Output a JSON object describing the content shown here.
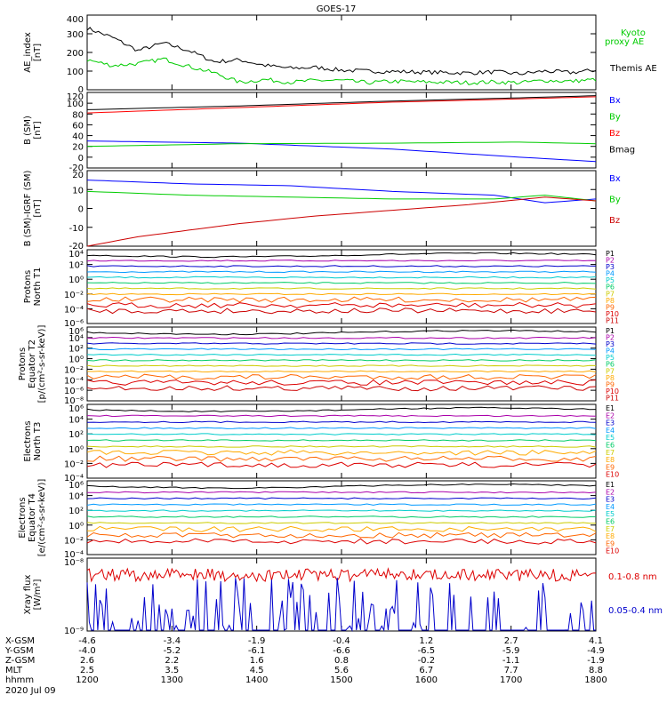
{
  "title": "GOES-17",
  "chart_data": [
    {
      "type": "line",
      "panel": "ae",
      "ylabel": [
        "AE_index",
        "[nT]"
      ],
      "ylim": [
        0,
        400
      ],
      "yticks": [
        "0",
        "100",
        "200",
        "300",
        "400"
      ],
      "series": [
        {
          "name": "Themis AE",
          "color": "#000000",
          "x": [
            0,
            0.05,
            0.1,
            0.15,
            0.2,
            0.25,
            0.3,
            0.35,
            0.4,
            0.45,
            0.5,
            0.55,
            0.6,
            0.65,
            0.7,
            0.75,
            0.8,
            0.85,
            0.9,
            0.95,
            1
          ],
          "y": [
            330,
            280,
            210,
            250,
            210,
            150,
            160,
            130,
            115,
            120,
            105,
            100,
            98,
            95,
            92,
            90,
            96,
            85,
            100,
            92,
            105
          ]
        },
        {
          "name": "Kyoto proxy AE",
          "color": "#00cc00",
          "x": [
            0,
            0.05,
            0.1,
            0.15,
            0.2,
            0.25,
            0.3,
            0.35,
            0.4,
            0.45,
            0.5,
            0.55,
            0.6,
            0.65,
            0.7,
            0.75,
            0.8,
            0.85,
            0.9,
            0.95,
            1
          ],
          "y": [
            160,
            130,
            140,
            165,
            125,
            90,
            40,
            55,
            40,
            50,
            50,
            38,
            45,
            42,
            40,
            38,
            42,
            38,
            50,
            45,
            55
          ]
        }
      ],
      "legend": [
        "Kyoto",
        "proxy AE",
        "Themis AE"
      ]
    },
    {
      "type": "line",
      "panel": "b_sm",
      "ylabel": [
        "B (SM)",
        "[nT]"
      ],
      "ylim": [
        -20,
        120
      ],
      "yticks": [
        "-20",
        "0",
        "20",
        "40",
        "60",
        "80",
        "100",
        "120"
      ],
      "series": [
        {
          "name": "Bx",
          "color": "#0000ff",
          "x": [
            0,
            0.3,
            0.6,
            0.85,
            1
          ],
          "y": [
            30,
            26,
            15,
            0,
            -8
          ]
        },
        {
          "name": "By",
          "color": "#00cc00",
          "x": [
            0,
            0.3,
            0.6,
            0.85,
            1
          ],
          "y": [
            20,
            25,
            26,
            28,
            25
          ]
        },
        {
          "name": "Bz",
          "color": "#ff0000",
          "x": [
            0,
            0.3,
            0.6,
            0.85,
            1
          ],
          "y": [
            82,
            92,
            102,
            108,
            112
          ]
        },
        {
          "name": "Bmag",
          "color": "#000000",
          "x": [
            0,
            0.3,
            0.6,
            0.85,
            1
          ],
          "y": [
            88,
            95,
            104,
            110,
            114
          ]
        }
      ]
    },
    {
      "type": "line",
      "panel": "b_igrf",
      "ylabel": [
        "B (SM)-IGRF (SM)",
        "[nT]"
      ],
      "ylim": [
        -20,
        20
      ],
      "yticks": [
        "-20",
        "-10",
        "0",
        "10",
        "20"
      ],
      "series": [
        {
          "name": "Bx",
          "color": "#0000ff",
          "x": [
            0,
            0.2,
            0.4,
            0.6,
            0.8,
            0.9,
            1
          ],
          "y": [
            15,
            13,
            12,
            9,
            7,
            3,
            5
          ]
        },
        {
          "name": "By",
          "color": "#00cc00",
          "x": [
            0,
            0.2,
            0.4,
            0.6,
            0.8,
            0.9,
            1
          ],
          "y": [
            9,
            7,
            6,
            5,
            5,
            7,
            4
          ]
        },
        {
          "name": "Bz",
          "color": "#cc0000",
          "x": [
            0,
            0.1,
            0.3,
            0.45,
            0.6,
            0.75,
            0.9,
            1
          ],
          "y": [
            -20,
            -15,
            -8,
            -4,
            -1,
            2,
            6,
            4
          ]
        }
      ]
    },
    {
      "type": "line",
      "panel": "protons_t1",
      "ylabel": [
        "Protons",
        "North T1"
      ],
      "yticks": [
        "10⁻⁶",
        "10⁻⁴",
        "10⁻²",
        "10⁰",
        "10²",
        "10⁴"
      ],
      "legend": [
        "P1",
        "P2",
        "P3",
        "P4",
        "P5",
        "P6",
        "P7",
        "P8",
        "P9",
        "P10",
        "P11"
      ]
    },
    {
      "type": "line",
      "panel": "protons_t2",
      "ylabel": [
        "Protons",
        "Equator T2",
        "[p/(cm²-s-sr-keV)]"
      ],
      "yticks": [
        "10⁻⁸",
        "10⁻⁶",
        "10⁻⁴",
        "10⁻²",
        "10⁰",
        "10²",
        "10⁴",
        "10⁶"
      ],
      "legend": [
        "P1",
        "P2",
        "P3",
        "P4",
        "P5",
        "P6",
        "P7",
        "P8",
        "P9",
        "P10",
        "P11"
      ]
    },
    {
      "type": "line",
      "panel": "electrons_t3",
      "ylabel": [
        "Electrons",
        "North T3"
      ],
      "yticks": [
        "10⁻⁴",
        "10⁻²",
        "10⁰",
        "10²",
        "10⁴",
        "10⁶"
      ],
      "legend": [
        "E1",
        "E2",
        "E3",
        "E4",
        "E5",
        "E6",
        "E7",
        "E8",
        "E9",
        "E10"
      ]
    },
    {
      "type": "line",
      "panel": "electrons_t4",
      "ylabel": [
        "Electrons",
        "Equator T4",
        "[e/(cm²-s-sr-keV)]"
      ],
      "yticks": [
        "10⁻⁴",
        "10⁻²",
        "10⁰",
        "10²",
        "10⁴",
        "10⁶"
      ],
      "legend": [
        "E1",
        "E2",
        "E3",
        "E4",
        "E5",
        "E6",
        "E7",
        "E8",
        "E9",
        "E10"
      ]
    },
    {
      "type": "line",
      "panel": "xray",
      "ylabel": [
        "Xray flux",
        "[W/m²]"
      ],
      "yticks": [
        "10⁻⁹",
        "10⁻⁸"
      ],
      "legend": [
        "0.1-0.8 nm",
        "0.05-0.4 nm"
      ]
    }
  ],
  "xaxis": {
    "rows": [
      {
        "label": "X-GSM",
        "values": [
          "-4.6",
          "-3.4",
          "-1.9",
          "-0.4",
          "1.2",
          "2.7",
          "4.1"
        ]
      },
      {
        "label": "Y-GSM",
        "values": [
          "-4.0",
          "-5.2",
          "-6.1",
          "-6.6",
          "-6.5",
          "-5.9",
          "-4.9"
        ]
      },
      {
        "label": "Z-GSM",
        "values": [
          "2.6",
          "2.2",
          "1.6",
          "0.8",
          "-0.2",
          "-1.1",
          "-1.9"
        ]
      },
      {
        "label": "MLT",
        "values": [
          "2.5",
          "3.5",
          "4.5",
          "5.6",
          "6.7",
          "7.7",
          "8.8"
        ]
      },
      {
        "label": "hhmm",
        "values": [
          "1200",
          "1300",
          "1400",
          "1500",
          "1600",
          "1700",
          "1800"
        ]
      }
    ],
    "date": "2020 Jul 09"
  }
}
